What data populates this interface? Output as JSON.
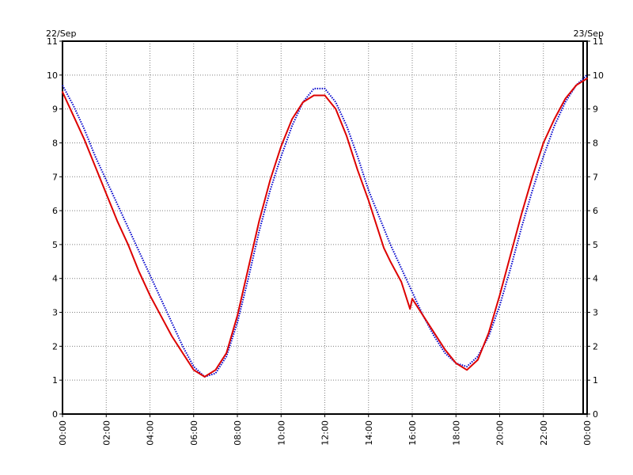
{
  "chart_data": {
    "type": "line",
    "date_start_label": "22/Sep",
    "date_end_label": "23/Sep",
    "x_tick_labels": [
      "00:00",
      "02:00",
      "04:00",
      "06:00",
      "08:00",
      "10:00",
      "12:00",
      "14:00",
      "16:00",
      "18:00",
      "20:00",
      "22:00",
      "00:00"
    ],
    "y_tick_labels": [
      "0",
      "1",
      "2",
      "3",
      "4",
      "5",
      "6",
      "7",
      "8",
      "9",
      "10",
      "11"
    ],
    "xlim": [
      0,
      24
    ],
    "ylim": [
      0,
      11
    ],
    "grid": true,
    "legend": "none",
    "series": [
      {
        "color": "#0000cc",
        "style": "dotted",
        "x": [
          0,
          0.5,
          1,
          1.5,
          2,
          2.5,
          3,
          3.5,
          4,
          4.5,
          5,
          5.5,
          6,
          6.5,
          7,
          7.5,
          8,
          8.5,
          9,
          9.5,
          10,
          10.5,
          11,
          11.5,
          12,
          12.5,
          13,
          13.5,
          14,
          14.5,
          15,
          15.5,
          16,
          16.5,
          17,
          17.5,
          18,
          18.5,
          19,
          19.5,
          20,
          20.5,
          21,
          21.5,
          22,
          22.5,
          23,
          23.5,
          24
        ],
        "y": [
          9.7,
          9.1,
          8.4,
          7.6,
          6.9,
          6.2,
          5.5,
          4.8,
          4.1,
          3.4,
          2.7,
          2.0,
          1.4,
          1.1,
          1.2,
          1.7,
          2.7,
          4.0,
          5.4,
          6.6,
          7.6,
          8.5,
          9.2,
          9.6,
          9.6,
          9.2,
          8.5,
          7.6,
          6.6,
          5.8,
          5.0,
          4.3,
          3.6,
          2.9,
          2.3,
          1.8,
          1.5,
          1.4,
          1.7,
          2.3,
          3.2,
          4.3,
          5.5,
          6.6,
          7.6,
          8.5,
          9.2,
          9.7,
          10.0
        ]
      },
      {
        "color": "#dd0000",
        "style": "solid",
        "x": [
          0,
          0.5,
          1,
          1.5,
          2,
          2.5,
          3,
          3.5,
          4,
          4.5,
          5,
          5.5,
          6,
          6.5,
          7,
          7.5,
          8,
          8.5,
          9,
          9.5,
          10,
          10.5,
          11,
          11.5,
          12,
          12.5,
          13,
          13.5,
          14,
          14.5,
          14.7,
          15,
          15.5,
          15.9,
          16,
          16.5,
          17,
          17.5,
          18,
          18.5,
          19,
          19.5,
          20,
          20.5,
          21,
          21.5,
          22,
          22.5,
          23,
          23.5,
          24
        ],
        "y": [
          9.5,
          8.8,
          8.1,
          7.3,
          6.5,
          5.7,
          5.0,
          4.2,
          3.5,
          2.9,
          2.3,
          1.8,
          1.3,
          1.1,
          1.3,
          1.8,
          2.9,
          4.3,
          5.7,
          6.9,
          7.9,
          8.7,
          9.2,
          9.4,
          9.4,
          9.0,
          8.2,
          7.2,
          6.3,
          5.3,
          4.9,
          4.5,
          3.9,
          3.1,
          3.4,
          2.9,
          2.4,
          1.9,
          1.5,
          1.3,
          1.6,
          2.4,
          3.5,
          4.7,
          5.9,
          7.0,
          8.0,
          8.7,
          9.3,
          9.7,
          9.9
        ]
      }
    ]
  }
}
